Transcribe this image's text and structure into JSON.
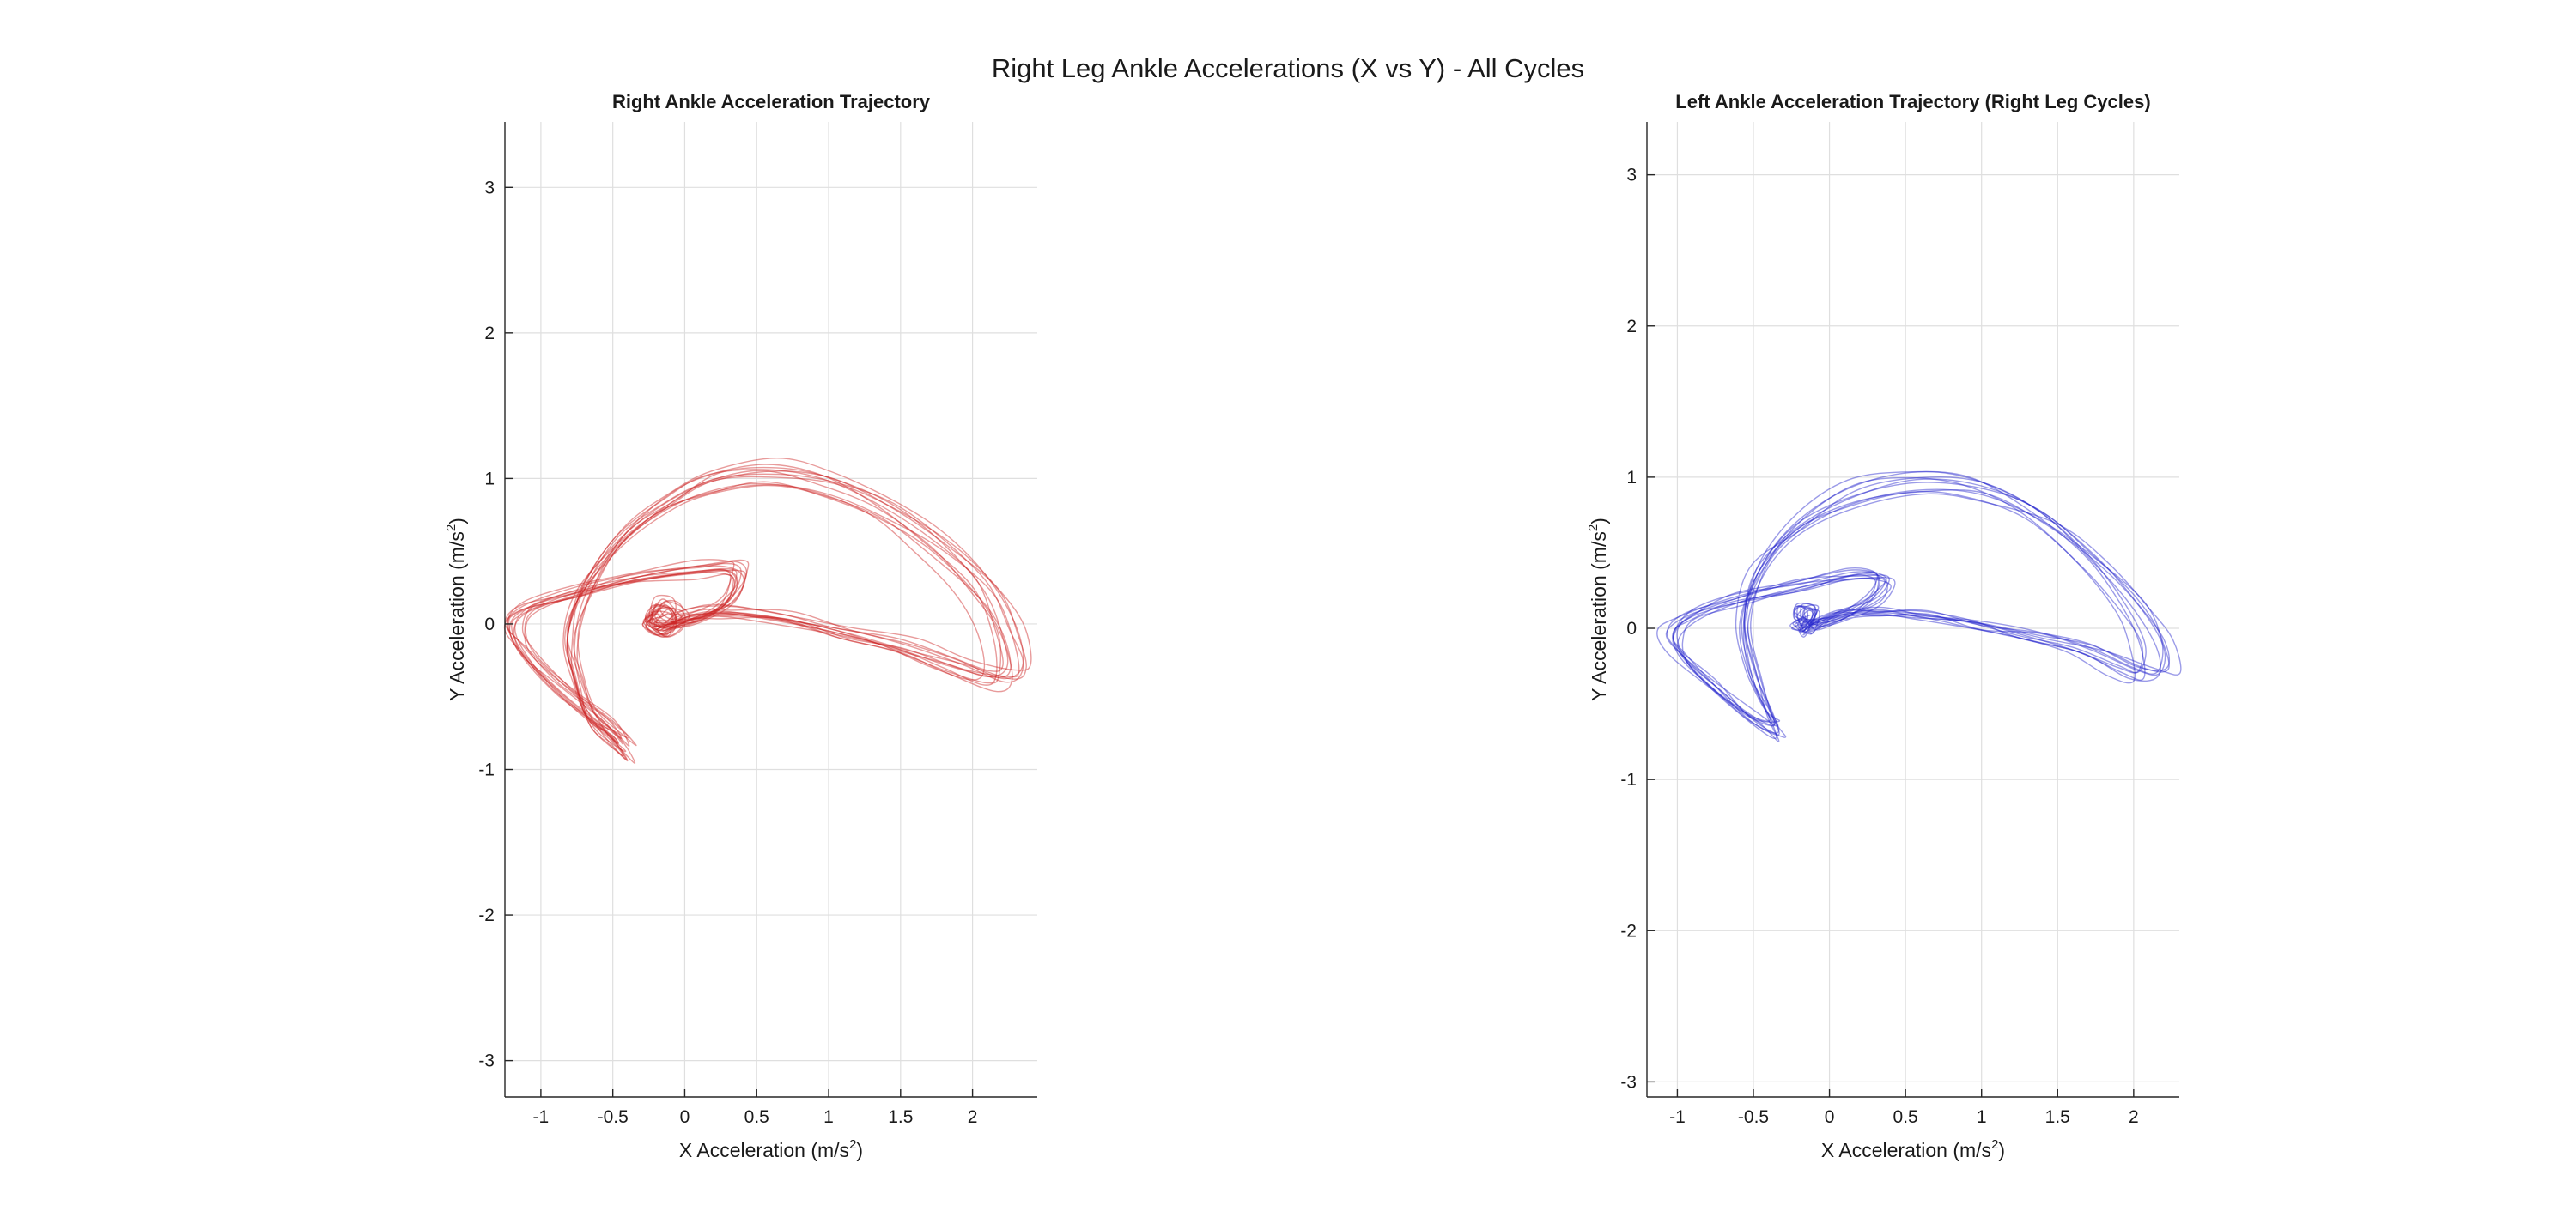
{
  "figure_title": "Right Leg Ankle Accelerations (X vs Y) - All Cycles",
  "colors": {
    "right": "#cc2222",
    "left": "#2222cc",
    "grid": "#dfdfdf",
    "axis": "#262626"
  },
  "chart_data": [
    {
      "type": "line",
      "title": "Right Ankle Acceleration Trajectory",
      "xlabel": "X Acceleration (m/s",
      "ylabel": "Y Acceleration (m/s",
      "label_superscript": "2",
      "label_close": ")",
      "xlim": [
        -1.25,
        2.45
      ],
      "ylim": [
        -3.25,
        3.45
      ],
      "xticks": [
        -1,
        -0.5,
        0,
        0.5,
        1,
        1.5,
        2
      ],
      "yticks": [
        -3,
        -2,
        -1,
        0,
        1,
        2,
        3
      ],
      "xtick_labels": [
        "-1",
        "-0.5",
        "0",
        "0.5",
        "1",
        "1.5",
        "2"
      ],
      "ytick_labels": [
        "-3",
        "-2",
        "-1",
        "0",
        "1",
        "2",
        "3"
      ],
      "grid": true,
      "series_color": "#cc2222",
      "trajectory": {
        "x": [
          -0.15,
          0.05,
          0.3,
          0.7,
          1.1,
          1.5,
          1.85,
          2.15,
          2.25,
          2.2,
          2.05,
          1.75,
          1.4,
          1.0,
          0.6,
          0.2,
          -0.1,
          -0.4,
          -0.65,
          -0.75,
          -0.7,
          -0.6,
          -0.45,
          -0.38,
          -0.5,
          -0.8,
          -1.05,
          -1.15,
          -1.05,
          -0.7,
          -0.3,
          0.1,
          0.35,
          0.4,
          0.3,
          0.1,
          -0.1,
          -0.2,
          -0.15,
          -0.05,
          -0.02,
          -0.12,
          -0.22,
          -0.15
        ],
        "y": [
          -0.02,
          0.06,
          0.08,
          0.04,
          -0.05,
          -0.15,
          -0.28,
          -0.38,
          -0.3,
          -0.05,
          0.25,
          0.55,
          0.8,
          0.97,
          1.04,
          1.0,
          0.85,
          0.6,
          0.25,
          -0.1,
          -0.4,
          -0.65,
          -0.8,
          -0.85,
          -0.7,
          -0.45,
          -0.2,
          -0.02,
          0.12,
          0.22,
          0.32,
          0.38,
          0.4,
          0.32,
          0.15,
          0.04,
          0.0,
          0.05,
          0.14,
          0.12,
          0.02,
          -0.06,
          0.02,
          0.1
        ]
      },
      "cycle_count": 12
    },
    {
      "type": "line",
      "title": "Left Ankle Acceleration Trajectory (Right Leg Cycles)",
      "xlabel": "X Acceleration (m/s",
      "ylabel": "Y Acceleration (m/s",
      "label_superscript": "2",
      "label_close": ")",
      "xlim": [
        -1.2,
        2.3
      ],
      "ylim": [
        -3.1,
        3.35
      ],
      "xticks": [
        -1,
        -0.5,
        0,
        0.5,
        1,
        1.5,
        2
      ],
      "yticks": [
        -3,
        -2,
        -1,
        0,
        1,
        2,
        3
      ],
      "xtick_labels": [
        "-1",
        "-0.5",
        "0",
        "0.5",
        "1",
        "1.5",
        "2"
      ],
      "ytick_labels": [
        "-3",
        "-2",
        "-1",
        "0",
        "1",
        "2",
        "3"
      ],
      "grid": true,
      "series_color": "#2222cc",
      "trajectory": {
        "x": [
          -0.15,
          0.05,
          0.3,
          0.6,
          0.95,
          1.3,
          1.65,
          1.95,
          2.1,
          2.1,
          1.95,
          1.7,
          1.35,
          0.95,
          0.55,
          0.15,
          -0.2,
          -0.45,
          -0.55,
          -0.5,
          -0.4,
          -0.35,
          -0.5,
          -0.75,
          -0.95,
          -1.02,
          -0.9,
          -0.6,
          -0.2,
          0.15,
          0.35,
          0.3,
          0.1,
          -0.1,
          -0.2,
          -0.18,
          -0.1,
          -0.15,
          -0.22,
          -0.15
        ],
        "y": [
          -0.02,
          0.08,
          0.1,
          0.08,
          0.02,
          -0.05,
          -0.15,
          -0.28,
          -0.3,
          -0.1,
          0.15,
          0.45,
          0.75,
          0.92,
          0.96,
          0.88,
          0.68,
          0.4,
          0.05,
          -0.3,
          -0.55,
          -0.68,
          -0.6,
          -0.4,
          -0.2,
          -0.05,
          0.08,
          0.18,
          0.28,
          0.35,
          0.33,
          0.2,
          0.08,
          0.02,
          0.06,
          0.14,
          0.1,
          -0.02,
          0.0,
          0.06
        ]
      },
      "cycle_count": 10
    }
  ]
}
